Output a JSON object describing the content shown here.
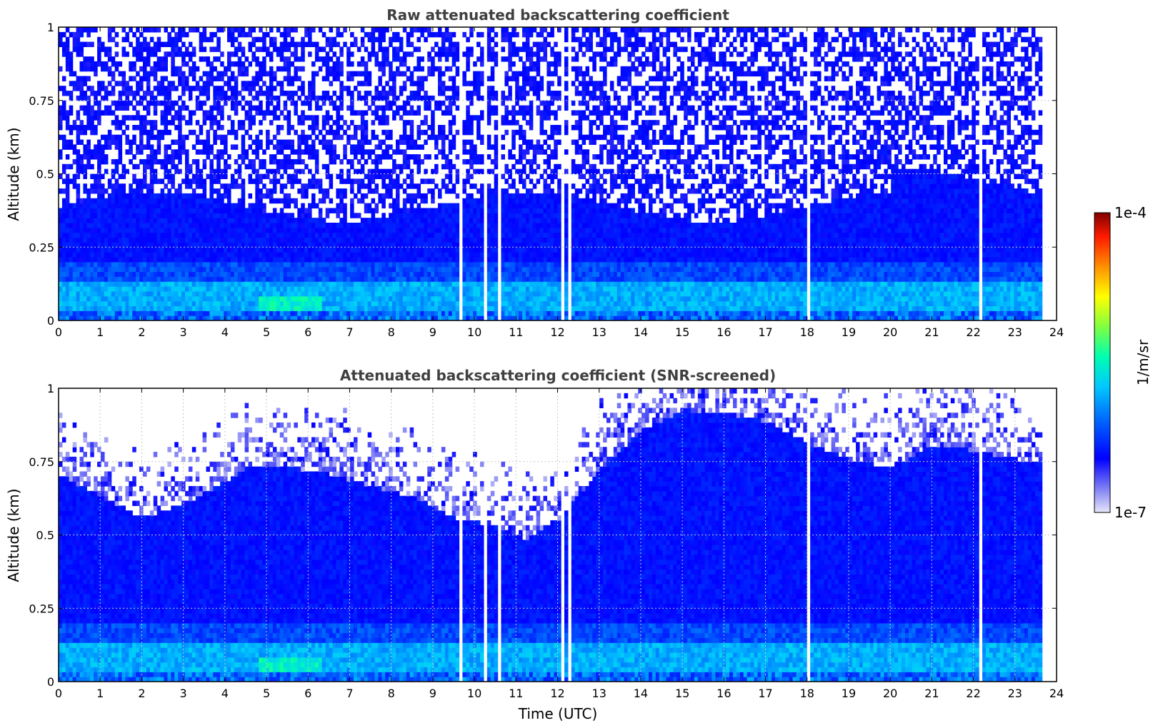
{
  "chart_data": [
    {
      "type": "heatmap",
      "title": "Raw attenuated backscattering coefficient",
      "xlabel": "",
      "ylabel": "Altitude (km)",
      "xlim": [
        0,
        24
      ],
      "ylim": [
        0,
        1
      ],
      "x_ticks": [
        "0",
        "1",
        "2",
        "3",
        "4",
        "5",
        "6",
        "7",
        "8",
        "9",
        "10",
        "11",
        "12",
        "13",
        "14",
        "15",
        "16",
        "17",
        "18",
        "19",
        "20",
        "21",
        "22",
        "23",
        "24"
      ],
      "y_ticks": [
        "0",
        "0.25",
        "0.5",
        "0.75",
        "1"
      ],
      "time_coverage_utc": [
        0,
        23.65
      ],
      "grid": "horizontal dotted",
      "screened": false,
      "data_gaps_utc": [
        9.6,
        9.75,
        10.1,
        10.25,
        10.55,
        11.95,
        12.05,
        12.25,
        18.0,
        22.1
      ]
    },
    {
      "type": "heatmap",
      "title": "Attenuated backscattering coefficient (SNR-screened)",
      "xlabel": "Time (UTC)",
      "ylabel": "Altitude (km)",
      "xlim": [
        0,
        24
      ],
      "ylim": [
        0,
        1
      ],
      "x_ticks": [
        "0",
        "1",
        "2",
        "3",
        "4",
        "5",
        "6",
        "7",
        "8",
        "9",
        "10",
        "11",
        "12",
        "13",
        "14",
        "15",
        "16",
        "17",
        "18",
        "19",
        "20",
        "21",
        "22",
        "23",
        "24"
      ],
      "y_ticks": [
        "0",
        "0.25",
        "0.5",
        "0.75",
        "1"
      ],
      "time_coverage_utc": [
        0,
        23.65
      ],
      "grid": "dotted both",
      "screened": true,
      "data_gaps_utc": [
        9.6,
        9.75,
        10.1,
        10.25,
        10.55,
        11.95,
        12.05,
        12.25,
        18.0,
        22.1
      ],
      "signal_top_km": [
        [
          0,
          0.7
        ],
        [
          1,
          0.62
        ],
        [
          2,
          0.55
        ],
        [
          3,
          0.6
        ],
        [
          3.8,
          0.66
        ],
        [
          4.5,
          0.72
        ],
        [
          5.5,
          0.72
        ],
        [
          6.5,
          0.7
        ],
        [
          7.5,
          0.66
        ],
        [
          8.5,
          0.62
        ],
        [
          9.5,
          0.55
        ],
        [
          10.5,
          0.52
        ],
        [
          11.2,
          0.48
        ],
        [
          12,
          0.55
        ],
        [
          13,
          0.72
        ],
        [
          14,
          0.85
        ],
        [
          15,
          0.92
        ],
        [
          16,
          0.9
        ],
        [
          17,
          0.88
        ],
        [
          18,
          0.8
        ],
        [
          19,
          0.75
        ],
        [
          20,
          0.72
        ],
        [
          21,
          0.8
        ],
        [
          22,
          0.78
        ],
        [
          23,
          0.75
        ],
        [
          23.65,
          0.75
        ]
      ]
    }
  ],
  "colorbar": {
    "label": "1/m/sr",
    "max_label": "1e-4",
    "min_label": "1e-7",
    "scale": "log",
    "range": [
      1e-07,
      0.0001
    ],
    "colormap": "jet (light-blue to dark-red)"
  }
}
